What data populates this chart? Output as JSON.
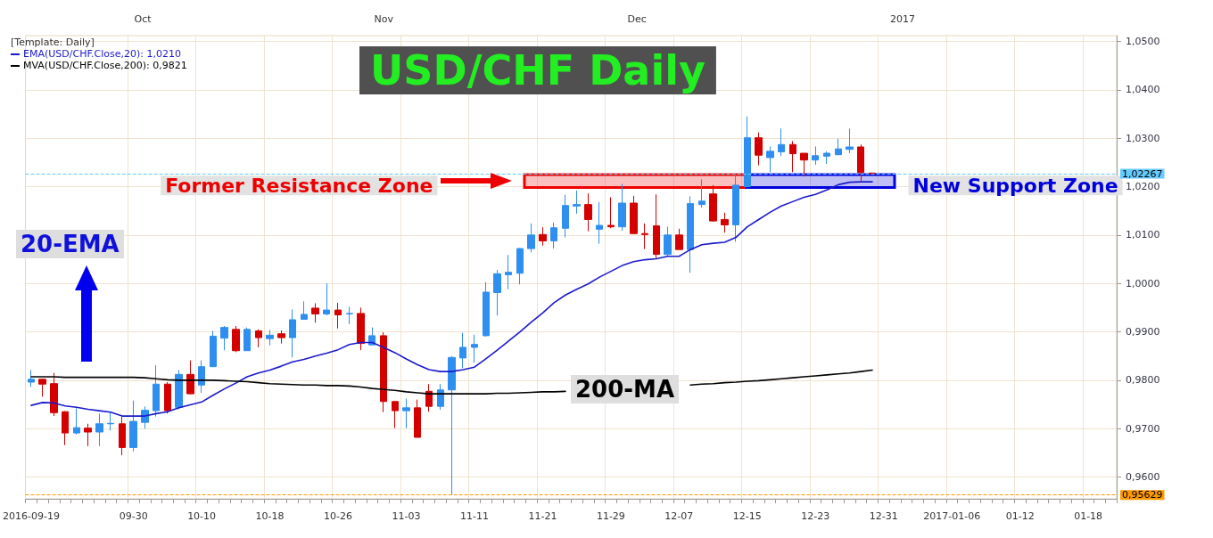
{
  "chart_data": {
    "type": "candlestick",
    "title": "USD/CHF Daily",
    "categories": [
      "2016-09-19",
      null,
      null,
      null,
      null,
      null,
      null,
      null,
      null,
      "09-30",
      null,
      null,
      null,
      null,
      null,
      "10-10",
      null,
      null,
      null,
      null,
      null,
      "10-18",
      null,
      null,
      null,
      null,
      null,
      "10-26",
      null,
      null,
      null,
      null,
      null,
      "11-03",
      null,
      null,
      null,
      null,
      null,
      "11-11",
      null,
      null,
      null,
      null,
      null,
      "11-21",
      null,
      null,
      null,
      null,
      null,
      "11-29",
      null,
      null,
      null,
      null,
      null,
      "12-07",
      null,
      null,
      null,
      null,
      null,
      "12-15",
      null,
      null,
      null,
      null,
      null,
      "12-23",
      null,
      null,
      null,
      null,
      null,
      "12-31",
      null,
      null,
      null,
      null,
      null,
      "2017-01-06",
      null,
      null,
      null,
      null,
      null,
      "01-12",
      null,
      null,
      null,
      null,
      null,
      "01-18",
      null,
      null
    ],
    "series": [
      {
        "ohlc": [
          [
            0.9796,
            0.9821,
            0.9786,
            0.9802
          ],
          [
            0.9802,
            0.9803,
            0.9766,
            0.9792
          ],
          [
            0.9793,
            0.9815,
            0.9726,
            0.9733
          ],
          [
            0.9735,
            0.9736,
            0.9666,
            0.9691
          ],
          [
            0.9691,
            0.9742,
            0.9688,
            0.9702
          ],
          [
            0.9701,
            0.971,
            0.9664,
            0.9693
          ],
          [
            0.9693,
            0.9731,
            0.9664,
            0.971
          ],
          [
            0.971,
            0.9735,
            0.9696,
            0.9711
          ],
          [
            0.971,
            0.9725,
            0.9645,
            0.9661
          ],
          [
            0.9661,
            0.9758,
            0.9653,
            0.9715
          ],
          [
            0.9713,
            0.9746,
            0.97,
            0.9738
          ],
          [
            0.9737,
            0.9831,
            0.9725,
            0.9792
          ],
          [
            0.9792,
            0.9796,
            0.9731,
            0.9737
          ],
          [
            0.9744,
            0.9821,
            0.974,
            0.9812
          ],
          [
            0.9812,
            0.9841,
            0.9771,
            0.9772
          ],
          [
            0.979,
            0.9841,
            0.9774,
            0.9828
          ],
          [
            0.9828,
            0.9902,
            0.9827,
            0.9891
          ],
          [
            0.9887,
            0.9912,
            0.9862,
            0.9909
          ],
          [
            0.9905,
            0.9912,
            0.9858,
            0.9861
          ],
          [
            0.9861,
            0.9909,
            0.9861,
            0.9905
          ],
          [
            0.9902,
            0.9905,
            0.9868,
            0.9888
          ],
          [
            0.9886,
            0.9904,
            0.9872,
            0.9893
          ],
          [
            0.9896,
            0.9903,
            0.9876,
            0.9888
          ],
          [
            0.9888,
            0.9946,
            0.9847,
            0.9925
          ],
          [
            0.9926,
            0.9963,
            0.9925,
            0.9936
          ],
          [
            0.9949,
            0.9959,
            0.9919,
            0.9937
          ],
          [
            0.9937,
            1.0,
            0.9934,
            0.9945
          ],
          [
            0.9945,
            0.996,
            0.9907,
            0.9935
          ],
          [
            0.9937,
            0.9952,
            0.9916,
            0.9938
          ],
          [
            0.9938,
            0.995,
            0.9862,
            0.9876
          ],
          [
            0.9873,
            0.9909,
            0.9873,
            0.9892
          ],
          [
            0.9892,
            0.9899,
            0.9734,
            0.9756
          ],
          [
            0.9756,
            0.9756,
            0.9701,
            0.9737
          ],
          [
            0.9737,
            0.9762,
            0.9701,
            0.9743
          ],
          [
            0.9743,
            0.976,
            0.9682,
            0.9682
          ],
          [
            0.9777,
            0.9792,
            0.9735,
            0.9746
          ],
          [
            0.9746,
            0.9792,
            0.9739,
            0.978
          ],
          [
            0.978,
            0.985,
            0.95629,
            0.9847
          ],
          [
            0.9846,
            0.9898,
            0.9825,
            0.9868
          ],
          [
            0.9868,
            0.9894,
            0.9836,
            0.9874
          ],
          [
            0.9892,
            1.0003,
            0.989,
            0.9982
          ],
          [
            0.9981,
            1.0028,
            0.9934,
            1.002
          ],
          [
            1.0018,
            1.0059,
            0.9988,
            1.0023
          ],
          [
            1.0021,
            1.0073,
            0.9998,
            1.0072
          ],
          [
            1.0072,
            1.0124,
            1.0064,
            1.01
          ],
          [
            1.0101,
            1.0116,
            1.0078,
            1.0088
          ],
          [
            1.0088,
            1.0126,
            1.0072,
            1.0115
          ],
          [
            1.0114,
            1.0183,
            1.0095,
            1.0161
          ],
          [
            1.016,
            1.0192,
            1.0144,
            1.0163
          ],
          [
            1.0163,
            1.0186,
            1.0108,
            1.0132
          ],
          [
            1.0112,
            1.0168,
            1.0082,
            1.012
          ],
          [
            1.012,
            1.0178,
            1.0114,
            1.0117
          ],
          [
            1.0117,
            1.0206,
            1.0109,
            1.0166
          ],
          [
            1.0166,
            1.0181,
            1.0102,
            1.0103
          ],
          [
            1.0103,
            1.0124,
            1.0071,
            1.0101
          ],
          [
            1.0119,
            1.0184,
            1.0052,
            1.006
          ],
          [
            1.006,
            1.0117,
            1.0056,
            1.01
          ],
          [
            1.01,
            1.0113,
            1.007,
            1.007
          ],
          [
            1.007,
            1.018,
            1.0022,
            1.0165
          ],
          [
            1.0163,
            1.0215,
            1.0157,
            1.017
          ],
          [
            1.0185,
            1.0203,
            1.0128,
            1.0129
          ],
          [
            1.0132,
            1.0146,
            1.0105,
            1.0121
          ],
          [
            1.0121,
            1.0224,
            1.0086,
            1.0203
          ],
          [
            1.02,
            1.0345,
            1.0199,
            1.0301
          ],
          [
            1.0301,
            1.0312,
            1.0244,
            1.0265
          ],
          [
            1.026,
            1.0283,
            1.023,
            1.0273
          ],
          [
            1.0272,
            1.032,
            1.0263,
            1.0287
          ],
          [
            1.0287,
            1.0294,
            1.023,
            1.0268
          ],
          [
            1.0269,
            1.0269,
            1.0221,
            1.0255
          ],
          [
            1.0255,
            1.0283,
            1.0245,
            1.0264
          ],
          [
            1.0263,
            1.0273,
            1.0247,
            1.0269
          ],
          [
            1.0266,
            1.0299,
            1.0265,
            1.0278
          ],
          [
            1.0277,
            1.032,
            1.0269,
            1.0282
          ],
          [
            1.0282,
            1.0287,
            1.0212,
            1.0229
          ],
          [
            1.0228,
            1.0229,
            1.0226,
            1.02267
          ],
          null,
          null,
          null,
          null,
          null,
          null,
          null,
          null,
          null,
          null,
          null,
          null,
          null,
          null,
          null,
          null,
          null,
          null,
          null,
          null,
          null
        ],
        "colors": [
          "#2e8ff0",
          "#d40000",
          "#d40000",
          "#d40000",
          "#2e8ff0",
          "#d40000",
          "#2e8ff0",
          "#2e8ff0",
          "#d40000",
          "#2e8ff0",
          "#2e8ff0",
          "#2e8ff0",
          "#d40000",
          "#2e8ff0",
          "#d40000",
          "#2e8ff0",
          "#2e8ff0",
          "#2e8ff0",
          "#d40000",
          "#2e8ff0",
          "#d40000",
          "#2e8ff0",
          "#d40000",
          "#2e8ff0",
          "#2e8ff0",
          "#d40000",
          "#2e8ff0",
          "#d40000",
          "#2e8ff0",
          "#d40000",
          "#2e8ff0",
          "#d40000",
          "#d40000",
          "#2e8ff0",
          "#d40000",
          "#d40000",
          "#2e8ff0",
          "#2e8ff0",
          "#2e8ff0",
          "#2e8ff0",
          "#2e8ff0",
          "#2e8ff0",
          "#2e8ff0",
          "#2e8ff0",
          "#2e8ff0",
          "#d40000",
          "#2e8ff0",
          "#2e8ff0",
          "#2e8ff0",
          "#d40000",
          "#2e8ff0",
          "#d40000",
          "#2e8ff0",
          "#d40000",
          "#d40000",
          "#d40000",
          "#2e8ff0",
          "#d40000",
          "#2e8ff0",
          "#2e8ff0",
          "#d40000",
          "#d40000",
          "#2e8ff0",
          "#2e8ff0",
          "#d40000",
          "#2e8ff0",
          "#2e8ff0",
          "#d40000",
          "#d40000",
          "#2e8ff0",
          "#2e8ff0",
          "#2e8ff0",
          "#2e8ff0",
          "#d40000",
          "#d40000",
          null,
          null,
          null,
          null,
          null,
          null,
          null,
          null,
          null,
          null,
          null,
          null,
          null,
          null,
          null,
          null,
          null,
          null,
          null,
          null,
          null
        ]
      },
      {
        "type": "line",
        "name": "EMA(USD/CHF.Close,20): 1,0210",
        "color": "#1a1acc",
        "values": [
          0.9748,
          0.9754,
          0.9753,
          0.9747,
          0.9744,
          0.974,
          0.9737,
          0.9734,
          0.9726,
          0.9726,
          0.9726,
          0.9731,
          0.9735,
          0.9743,
          0.9749,
          0.9755,
          0.9769,
          0.9782,
          0.9794,
          0.9807,
          0.9815,
          0.9821,
          0.9829,
          0.9838,
          0.9843,
          0.985,
          0.9856,
          0.9863,
          0.9874,
          0.9878,
          0.9878,
          0.9868,
          0.9857,
          0.9844,
          0.9832,
          0.9822,
          0.9818,
          0.9818,
          0.9822,
          0.9827,
          0.9844,
          0.9862,
          0.9881,
          0.99,
          0.992,
          0.9939,
          0.996,
          0.9976,
          0.9988,
          0.9999,
          1.0013,
          1.0025,
          1.0037,
          1.0045,
          1.0049,
          1.0051,
          1.0056,
          1.0056,
          1.007,
          1.008,
          1.0083,
          1.0085,
          1.0095,
          1.0117,
          1.0132,
          1.0147,
          1.016,
          1.0169,
          1.0178,
          1.0184,
          1.0193,
          1.0204,
          1.0209,
          1.021,
          1.021,
          null,
          null,
          null,
          null,
          null,
          null,
          null,
          null,
          null,
          null,
          null,
          null,
          null,
          null,
          null,
          null,
          null,
          null,
          null,
          null,
          null
        ]
      },
      {
        "type": "line",
        "name": "MVA(USD/CHF.Close,200): 0,9821",
        "color": "#000000",
        "values": [
          0.9807,
          0.9807,
          0.9807,
          0.9806,
          0.9806,
          0.9806,
          0.9806,
          0.9806,
          0.9806,
          0.9806,
          0.9805,
          0.9803,
          0.9801,
          0.98,
          0.98,
          0.98,
          0.98,
          0.9799,
          0.9798,
          0.9797,
          0.9795,
          0.9793,
          0.9792,
          0.9791,
          0.979,
          0.979,
          0.9789,
          0.9789,
          0.9788,
          0.9786,
          0.9783,
          0.9781,
          0.9779,
          0.9776,
          0.9774,
          0.9772,
          0.9772,
          0.9772,
          0.9772,
          0.9772,
          0.9772,
          0.9773,
          0.9773,
          0.9774,
          0.9775,
          0.9776,
          0.9776,
          0.9777,
          null,
          null,
          null,
          null,
          null,
          null,
          null,
          null,
          null,
          null,
          0.979,
          0.9792,
          0.9793,
          0.9795,
          0.9796,
          0.9798,
          0.9799,
          0.9801,
          0.9803,
          0.9805,
          0.9807,
          0.9809,
          0.9811,
          0.9813,
          0.9815,
          0.9818,
          0.9821,
          null,
          null,
          null,
          null,
          null,
          null,
          null,
          null,
          null,
          null,
          null,
          null,
          null,
          null,
          null,
          null,
          null,
          null,
          null,
          null,
          null
        ]
      }
    ],
    "ylim": [
      0.9555,
      1.0512
    ],
    "yticks": [
      {
        "value": 0.96,
        "label": "0,9600"
      },
      {
        "value": 0.97,
        "label": "0,9700"
      },
      {
        "value": 0.98,
        "label": "0,9800"
      },
      {
        "value": 0.99,
        "label": "0,9900"
      },
      {
        "value": 1.0,
        "label": "1,0000"
      },
      {
        "value": 1.01,
        "label": "1,0100"
      },
      {
        "value": 1.02,
        "label": "1,0200"
      },
      {
        "value": 1.03,
        "label": "1,0300"
      },
      {
        "value": 1.04,
        "label": "1,0400"
      },
      {
        "value": 1.05,
        "label": "1,0500"
      }
    ],
    "ref_lines": [
      {
        "axis": "y",
        "value": 1.02267,
        "label": "1,02267",
        "color": "#66ccff",
        "line_style": "dashed"
      },
      {
        "axis": "y",
        "value": 0.95629,
        "label": "0,95629",
        "color": "#ff9900",
        "line_style": "dashed"
      }
    ],
    "bands": [
      {
        "axis": "y",
        "from": 1.0198,
        "to": 1.0225,
        "label": "Former Resistance Zone",
        "color": "#ee0000"
      },
      {
        "axis": "y",
        "from": 1.0198,
        "to": 1.0225,
        "label": "New Support Zone",
        "color": "#0000dd"
      }
    ],
    "annotations": [
      "[Template: Daily]",
      "20-EMA",
      "200-MA",
      "Oct",
      "Nov",
      "Dec",
      "2017"
    ],
    "legend": "top left",
    "grid": true,
    "marker": "none",
    "line_style": "solid"
  }
}
